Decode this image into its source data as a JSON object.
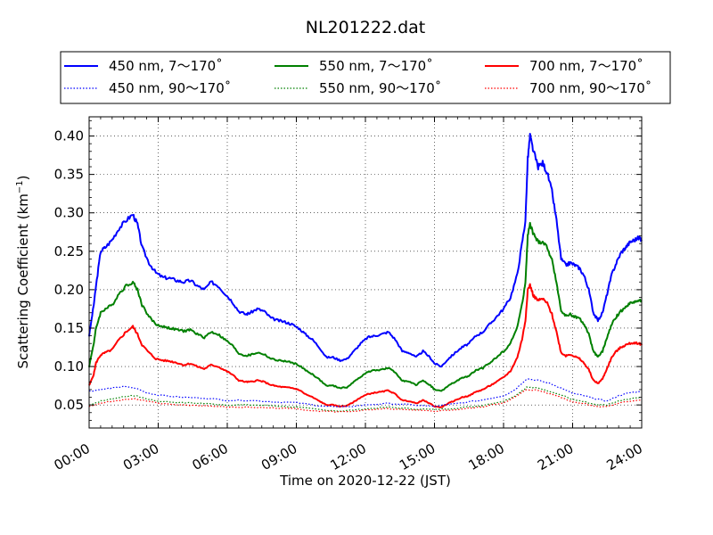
{
  "chart_data": {
    "type": "line",
    "title": "NL201222.dat",
    "xlabel": "Time on 2020-12-22 (JST)",
    "ylabel_main": "Scattering Coefficient (km",
    "ylabel_sup": "−1",
    "ylabel_tail": ")",
    "xlim_hours": [
      0,
      24
    ],
    "ylim": [
      0.02,
      0.425
    ],
    "x_ticks": [
      {
        "hour": 0,
        "label": "00:00"
      },
      {
        "hour": 3,
        "label": "03:00"
      },
      {
        "hour": 6,
        "label": "06:00"
      },
      {
        "hour": 9,
        "label": "09:00"
      },
      {
        "hour": 12,
        "label": "12:00"
      },
      {
        "hour": 15,
        "label": "15:00"
      },
      {
        "hour": 18,
        "label": "18:00"
      },
      {
        "hour": 21,
        "label": "21:00"
      },
      {
        "hour": 24,
        "label": "24:00"
      }
    ],
    "y_ticks": [
      {
        "value": 0.05,
        "label": "0.05"
      },
      {
        "value": 0.1,
        "label": "0.10"
      },
      {
        "value": 0.15,
        "label": "0.15"
      },
      {
        "value": 0.2,
        "label": "0.20"
      },
      {
        "value": 0.25,
        "label": "0.25"
      },
      {
        "value": 0.3,
        "label": "0.30"
      },
      {
        "value": 0.35,
        "label": "0.35"
      },
      {
        "value": 0.4,
        "label": "0.40"
      }
    ],
    "grid": true,
    "legend_position": "top",
    "legend": [
      {
        "label": "450 nm, 7～170˚",
        "color": "#0000ff",
        "style": "solid"
      },
      {
        "label": "550 nm, 7～170˚",
        "color": "#008000",
        "style": "solid"
      },
      {
        "label": "700 nm, 7～170˚",
        "color": "#ff0000",
        "style": "solid"
      },
      {
        "label": "450 nm, 90～170˚",
        "color": "#0000ff",
        "style": "dotted"
      },
      {
        "label": "550 nm, 90～170˚",
        "color": "#008000",
        "style": "dotted"
      },
      {
        "label": "700 nm, 90～170˚",
        "color": "#ff0000",
        "style": "dotted"
      }
    ],
    "series": [
      {
        "name": "450 nm, 7～170˚",
        "color": "#0000ff",
        "style": "solid",
        "x": [
          0,
          0.2,
          0.3,
          0.5,
          0.7,
          1.0,
          1.3,
          1.6,
          1.9,
          2.1,
          2.3,
          2.6,
          2.9,
          3.2,
          3.5,
          3.8,
          4.1,
          4.4,
          4.7,
          5.0,
          5.3,
          5.6,
          5.9,
          6.2,
          6.5,
          6.8,
          7.0,
          7.3,
          7.6,
          7.9,
          8.2,
          8.5,
          8.8,
          9.1,
          9.4,
          9.7,
          10.0,
          10.3,
          10.6,
          10.9,
          11.2,
          11.5,
          11.8,
          12.1,
          12.4,
          12.7,
          13.0,
          13.3,
          13.6,
          13.9,
          14.2,
          14.5,
          14.8,
          15.0,
          15.3,
          15.6,
          15.9,
          16.2,
          16.5,
          16.8,
          17.1,
          17.4,
          17.7,
          18.0,
          18.3,
          18.6,
          18.8,
          18.95,
          19.05,
          19.15,
          19.3,
          19.5,
          19.7,
          19.9,
          20.1,
          20.3,
          20.5,
          20.7,
          20.9,
          21.1,
          21.3,
          21.5,
          21.7,
          21.9,
          22.1,
          22.3,
          22.5,
          22.7,
          22.9,
          23.1,
          23.3,
          23.5,
          23.7,
          23.9,
          24.0
        ],
        "y": [
          0.14,
          0.18,
          0.205,
          0.25,
          0.255,
          0.265,
          0.28,
          0.29,
          0.298,
          0.285,
          0.255,
          0.235,
          0.222,
          0.216,
          0.215,
          0.212,
          0.21,
          0.212,
          0.205,
          0.2,
          0.21,
          0.205,
          0.195,
          0.185,
          0.172,
          0.168,
          0.17,
          0.175,
          0.172,
          0.163,
          0.16,
          0.158,
          0.155,
          0.15,
          0.142,
          0.135,
          0.125,
          0.112,
          0.112,
          0.108,
          0.11,
          0.12,
          0.13,
          0.138,
          0.14,
          0.142,
          0.145,
          0.135,
          0.12,
          0.118,
          0.112,
          0.12,
          0.112,
          0.104,
          0.1,
          0.11,
          0.118,
          0.125,
          0.13,
          0.14,
          0.145,
          0.155,
          0.165,
          0.175,
          0.19,
          0.22,
          0.26,
          0.29,
          0.37,
          0.4,
          0.38,
          0.36,
          0.365,
          0.352,
          0.328,
          0.29,
          0.24,
          0.232,
          0.235,
          0.232,
          0.228,
          0.218,
          0.2,
          0.17,
          0.16,
          0.17,
          0.195,
          0.22,
          0.235,
          0.248,
          0.255,
          0.262,
          0.265,
          0.268,
          0.265
        ]
      },
      {
        "name": "550 nm, 7～170˚",
        "color": "#008000",
        "style": "solid",
        "x": [
          0,
          0.2,
          0.3,
          0.5,
          0.7,
          1.0,
          1.3,
          1.6,
          1.9,
          2.1,
          2.3,
          2.6,
          2.9,
          3.2,
          3.5,
          3.8,
          4.1,
          4.4,
          4.7,
          5.0,
          5.3,
          5.6,
          5.9,
          6.2,
          6.5,
          6.8,
          7.0,
          7.3,
          7.6,
          7.9,
          8.2,
          8.5,
          8.8,
          9.1,
          9.4,
          9.7,
          10.0,
          10.3,
          10.6,
          10.9,
          11.2,
          11.5,
          11.8,
          12.1,
          12.4,
          12.7,
          13.0,
          13.3,
          13.6,
          13.9,
          14.2,
          14.5,
          14.8,
          15.0,
          15.3,
          15.6,
          15.9,
          16.2,
          16.5,
          16.8,
          17.1,
          17.4,
          17.7,
          18.0,
          18.3,
          18.6,
          18.8,
          18.95,
          19.05,
          19.15,
          19.3,
          19.5,
          19.7,
          19.9,
          20.1,
          20.3,
          20.5,
          20.7,
          20.9,
          21.1,
          21.3,
          21.5,
          21.7,
          21.9,
          22.1,
          22.3,
          22.5,
          22.7,
          22.9,
          23.1,
          23.3,
          23.5,
          23.7,
          23.9,
          24.0
        ],
        "y": [
          0.1,
          0.13,
          0.15,
          0.17,
          0.175,
          0.18,
          0.195,
          0.205,
          0.21,
          0.2,
          0.18,
          0.165,
          0.155,
          0.152,
          0.15,
          0.148,
          0.146,
          0.148,
          0.142,
          0.138,
          0.145,
          0.142,
          0.135,
          0.128,
          0.117,
          0.114,
          0.115,
          0.118,
          0.116,
          0.11,
          0.108,
          0.107,
          0.105,
          0.102,
          0.095,
          0.09,
          0.083,
          0.075,
          0.075,
          0.072,
          0.073,
          0.08,
          0.087,
          0.093,
          0.095,
          0.096,
          0.098,
          0.092,
          0.082,
          0.08,
          0.076,
          0.082,
          0.076,
          0.07,
          0.068,
          0.075,
          0.08,
          0.085,
          0.088,
          0.095,
          0.098,
          0.105,
          0.112,
          0.12,
          0.13,
          0.152,
          0.18,
          0.21,
          0.27,
          0.285,
          0.272,
          0.262,
          0.262,
          0.255,
          0.238,
          0.21,
          0.172,
          0.166,
          0.168,
          0.165,
          0.162,
          0.155,
          0.142,
          0.12,
          0.112,
          0.12,
          0.138,
          0.155,
          0.165,
          0.172,
          0.178,
          0.182,
          0.185,
          0.186,
          0.185
        ]
      },
      {
        "name": "700 nm, 7～170˚",
        "color": "#ff0000",
        "style": "solid",
        "x": [
          0,
          0.2,
          0.3,
          0.5,
          0.7,
          1.0,
          1.3,
          1.6,
          1.9,
          2.1,
          2.3,
          2.6,
          2.9,
          3.2,
          3.5,
          3.8,
          4.1,
          4.4,
          4.7,
          5.0,
          5.3,
          5.6,
          5.9,
          6.2,
          6.5,
          6.8,
          7.0,
          7.3,
          7.6,
          7.9,
          8.2,
          8.5,
          8.8,
          9.1,
          9.4,
          9.7,
          10.0,
          10.3,
          10.6,
          10.9,
          11.2,
          11.5,
          11.8,
          12.1,
          12.4,
          12.7,
          13.0,
          13.3,
          13.6,
          13.9,
          14.2,
          14.5,
          14.8,
          15.0,
          15.3,
          15.6,
          15.9,
          16.2,
          16.5,
          16.8,
          17.1,
          17.4,
          17.7,
          18.0,
          18.3,
          18.6,
          18.8,
          18.95,
          19.05,
          19.15,
          19.3,
          19.5,
          19.7,
          19.9,
          20.1,
          20.3,
          20.5,
          20.7,
          20.9,
          21.1,
          21.3,
          21.5,
          21.7,
          21.9,
          22.1,
          22.3,
          22.5,
          22.7,
          22.9,
          23.1,
          23.3,
          23.5,
          23.7,
          23.9,
          24.0
        ],
        "y": [
          0.075,
          0.09,
          0.105,
          0.115,
          0.118,
          0.122,
          0.135,
          0.145,
          0.152,
          0.142,
          0.128,
          0.118,
          0.11,
          0.108,
          0.107,
          0.105,
          0.102,
          0.104,
          0.1,
          0.097,
          0.102,
          0.1,
          0.095,
          0.09,
          0.082,
          0.08,
          0.08,
          0.082,
          0.08,
          0.076,
          0.074,
          0.073,
          0.072,
          0.07,
          0.064,
          0.06,
          0.055,
          0.05,
          0.05,
          0.048,
          0.049,
          0.054,
          0.06,
          0.064,
          0.066,
          0.067,
          0.069,
          0.064,
          0.056,
          0.055,
          0.052,
          0.056,
          0.052,
          0.048,
          0.047,
          0.052,
          0.056,
          0.06,
          0.062,
          0.067,
          0.07,
          0.075,
          0.08,
          0.086,
          0.094,
          0.112,
          0.135,
          0.16,
          0.2,
          0.206,
          0.192,
          0.186,
          0.188,
          0.182,
          0.168,
          0.145,
          0.118,
          0.114,
          0.116,
          0.113,
          0.11,
          0.104,
          0.096,
          0.082,
          0.078,
          0.084,
          0.098,
          0.112,
          0.12,
          0.125,
          0.128,
          0.13,
          0.131,
          0.13,
          0.128
        ]
      },
      {
        "name": "450 nm, 90～170˚",
        "color": "#0000ff",
        "style": "dotted",
        "x": [
          0,
          0.5,
          1.0,
          1.5,
          2.0,
          2.5,
          3.0,
          4.0,
          5.0,
          6.0,
          7.0,
          8.0,
          9.0,
          10.0,
          11.0,
          12.0,
          13.0,
          14.0,
          15.0,
          16.0,
          17.0,
          18.0,
          18.5,
          19.0,
          19.5,
          20.0,
          20.5,
          21.0,
          21.5,
          22.0,
          22.5,
          23.0,
          23.5,
          24.0
        ],
        "y": [
          0.068,
          0.07,
          0.072,
          0.074,
          0.072,
          0.066,
          0.063,
          0.06,
          0.059,
          0.056,
          0.056,
          0.054,
          0.053,
          0.049,
          0.047,
          0.05,
          0.052,
          0.05,
          0.048,
          0.052,
          0.056,
          0.062,
          0.07,
          0.084,
          0.082,
          0.078,
          0.072,
          0.065,
          0.062,
          0.058,
          0.055,
          0.062,
          0.066,
          0.068
        ]
      },
      {
        "name": "550 nm, 90～170˚",
        "color": "#008000",
        "style": "dotted",
        "x": [
          0,
          0.5,
          1.0,
          1.5,
          2.0,
          2.5,
          3.0,
          4.0,
          5.0,
          6.0,
          7.0,
          8.0,
          9.0,
          10.0,
          11.0,
          12.0,
          13.0,
          14.0,
          15.0,
          16.0,
          17.0,
          18.0,
          18.5,
          19.0,
          19.5,
          20.0,
          20.5,
          21.0,
          21.5,
          22.0,
          22.5,
          23.0,
          23.5,
          24.0
        ],
        "y": [
          0.05,
          0.055,
          0.058,
          0.061,
          0.062,
          0.058,
          0.055,
          0.053,
          0.052,
          0.05,
          0.05,
          0.049,
          0.047,
          0.044,
          0.042,
          0.045,
          0.047,
          0.045,
          0.044,
          0.046,
          0.049,
          0.055,
          0.062,
          0.073,
          0.072,
          0.068,
          0.063,
          0.057,
          0.054,
          0.05,
          0.05,
          0.055,
          0.058,
          0.06
        ]
      },
      {
        "name": "700 nm, 90～170˚",
        "color": "#ff0000",
        "style": "dotted",
        "x": [
          0,
          0.5,
          1.0,
          1.5,
          2.0,
          2.5,
          3.0,
          4.0,
          5.0,
          6.0,
          7.0,
          8.0,
          9.0,
          10.0,
          11.0,
          12.0,
          13.0,
          14.0,
          15.0,
          16.0,
          17.0,
          18.0,
          18.5,
          19.0,
          19.5,
          20.0,
          20.5,
          21.0,
          21.5,
          22.0,
          22.5,
          23.0,
          23.5,
          24.0
        ],
        "y": [
          0.048,
          0.052,
          0.055,
          0.057,
          0.058,
          0.055,
          0.052,
          0.05,
          0.049,
          0.047,
          0.047,
          0.046,
          0.045,
          0.042,
          0.041,
          0.043,
          0.045,
          0.043,
          0.042,
          0.044,
          0.047,
          0.053,
          0.06,
          0.07,
          0.069,
          0.065,
          0.06,
          0.054,
          0.052,
          0.048,
          0.048,
          0.052,
          0.055,
          0.057
        ]
      }
    ]
  }
}
